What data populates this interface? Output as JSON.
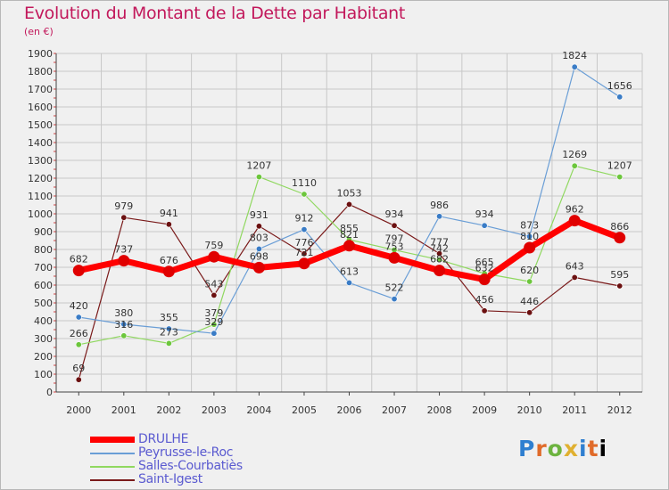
{
  "title": "Evolution du Montant de la Dette par Habitant",
  "unit": "(en €)",
  "logo": "Proxiti",
  "chart_data": {
    "type": "line",
    "x": [
      "2000",
      "2001",
      "2002",
      "2003",
      "2004",
      "2005",
      "2006",
      "2007",
      "2008",
      "2009",
      "2010",
      "2011",
      "2012"
    ],
    "ylim": [
      0,
      1900
    ],
    "yticks": [
      0,
      100,
      200,
      300,
      400,
      500,
      600,
      700,
      800,
      900,
      1000,
      1100,
      1200,
      1300,
      1400,
      1500,
      1600,
      1700,
      1800,
      1900
    ],
    "grid": true,
    "legend_position": "bottom-left",
    "series": [
      {
        "name": "Saint-Igest",
        "color": "#7a1a1a",
        "marker": "#6b1010",
        "width": 1.2,
        "values": [
          69,
          979,
          941,
          543,
          931,
          776,
          1053,
          934,
          777,
          456,
          446,
          643,
          595
        ],
        "labels": [
          "69",
          "979",
          "941",
          "543",
          "931",
          "776",
          "1053",
          "934",
          "777",
          "456",
          "446",
          "643",
          "595"
        ]
      },
      {
        "name": "Salles-Courbatiès",
        "color": "#90d860",
        "marker": "#6cc63c",
        "width": 1.2,
        "values": [
          266,
          316,
          273,
          379,
          1207,
          1110,
          855,
          797,
          742,
          665,
          620,
          1269,
          1207
        ],
        "labels": [
          "266",
          "316",
          "273",
          "379",
          "1207",
          "1110",
          "855",
          "797",
          "742",
          "665",
          "620",
          "1269",
          "1207"
        ]
      },
      {
        "name": "Peyrusse-le-Roc",
        "color": "#6a9ed6",
        "marker": "#3a7cc6",
        "width": 1.2,
        "values": [
          420,
          380,
          355,
          329,
          803,
          912,
          613,
          522,
          986,
          934,
          873,
          1824,
          1656
        ],
        "labels": [
          "420",
          "380",
          "355",
          "329",
          "803",
          "912",
          "613",
          "522",
          "986",
          "934",
          "873",
          "1824",
          "1656"
        ]
      },
      {
        "name": "DRULHE",
        "color": "#ff0000",
        "marker": "#e00000",
        "width": 7,
        "values": [
          682,
          737,
          676,
          759,
          698,
          721,
          821,
          753,
          682,
          632,
          810,
          962,
          866
        ],
        "labels": [
          "682",
          "737",
          "676",
          "759",
          "698",
          "721",
          "821",
          "753",
          "682",
          "632",
          "810",
          "962",
          "866"
        ]
      }
    ],
    "legend_order": [
      "DRULHE",
      "Peyrusse-le-Roc",
      "Salles-Courbatiès",
      "Saint-Igest"
    ]
  }
}
